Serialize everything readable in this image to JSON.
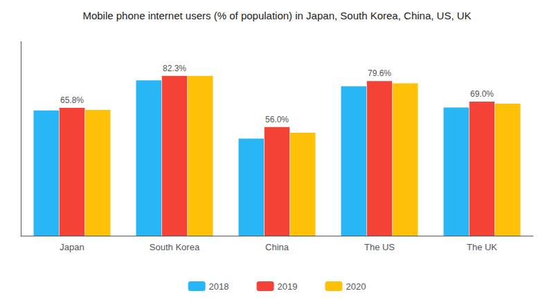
{
  "chart_data": {
    "type": "bar",
    "title": "Mobile phone internet users (% of population) in Japan, South Korea, China, US, UK",
    "categories": [
      "Japan",
      "South Korea",
      "China",
      "The US",
      "The UK"
    ],
    "series": [
      {
        "name": "2018",
        "color": "#29B6F6",
        "values": [
          64.5,
          80.0,
          50.0,
          77.0,
          66.0
        ]
      },
      {
        "name": "2019",
        "color": "#F44336",
        "values": [
          65.8,
          82.3,
          56.0,
          79.6,
          69.0
        ],
        "data_labels": true,
        "value_labels": [
          "65.8%",
          "82.3%",
          "56.0%",
          "79.6%",
          "69.0%"
        ]
      },
      {
        "name": "2020",
        "color": "#FFC107",
        "values": [
          64.8,
          82.3,
          53.0,
          78.5,
          68.0
        ]
      }
    ],
    "ylim": [
      0,
      100
    ],
    "grid": false,
    "legend": "bottom",
    "tick_labels": "x"
  }
}
